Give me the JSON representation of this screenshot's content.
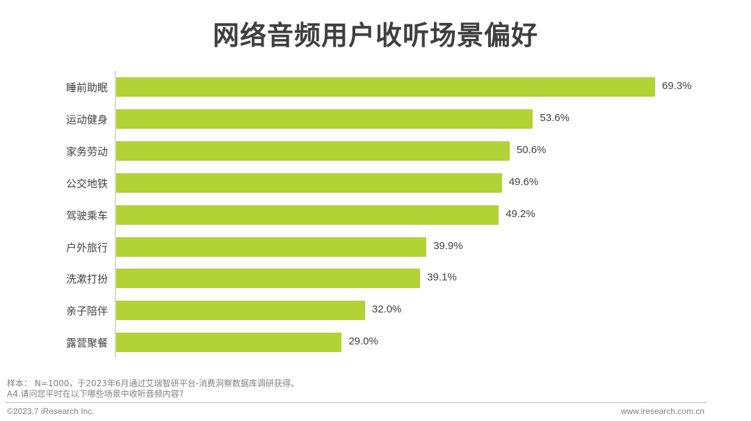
{
  "title": "网络音频用户收听场景偏好",
  "chart_data": {
    "type": "bar",
    "orientation": "horizontal",
    "title": "网络音频用户收听场景偏好",
    "xlabel": "",
    "ylabel": "",
    "categories": [
      "睡前助眠",
      "运动健身",
      "家务劳动",
      "公交地铁",
      "驾驶乘车",
      "户外旅行",
      "洗漱打扮",
      "亲子陪伴",
      "露营聚餐"
    ],
    "values": [
      69.3,
      53.6,
      50.6,
      49.6,
      49.2,
      39.9,
      39.1,
      32.0,
      29.0
    ],
    "labels": [
      "69.3%",
      "53.6%",
      "50.6%",
      "49.6%",
      "49.2%",
      "39.9%",
      "39.1%",
      "32.0%",
      "29.0%"
    ],
    "unit": "%",
    "bar_color": "#b2d235",
    "grid": false,
    "legend": null
  },
  "notes": {
    "sample": "样本： N=1000，于2023年6月通过艾瑞智研平台-消费洞察数据库调研获得。",
    "question": "A4.请问您平时在以下哪些场景中收听音频内容?"
  },
  "footer": {
    "copyright": "©2023.7 iResearch Inc.",
    "website": "www.iresearch.com.cn"
  }
}
